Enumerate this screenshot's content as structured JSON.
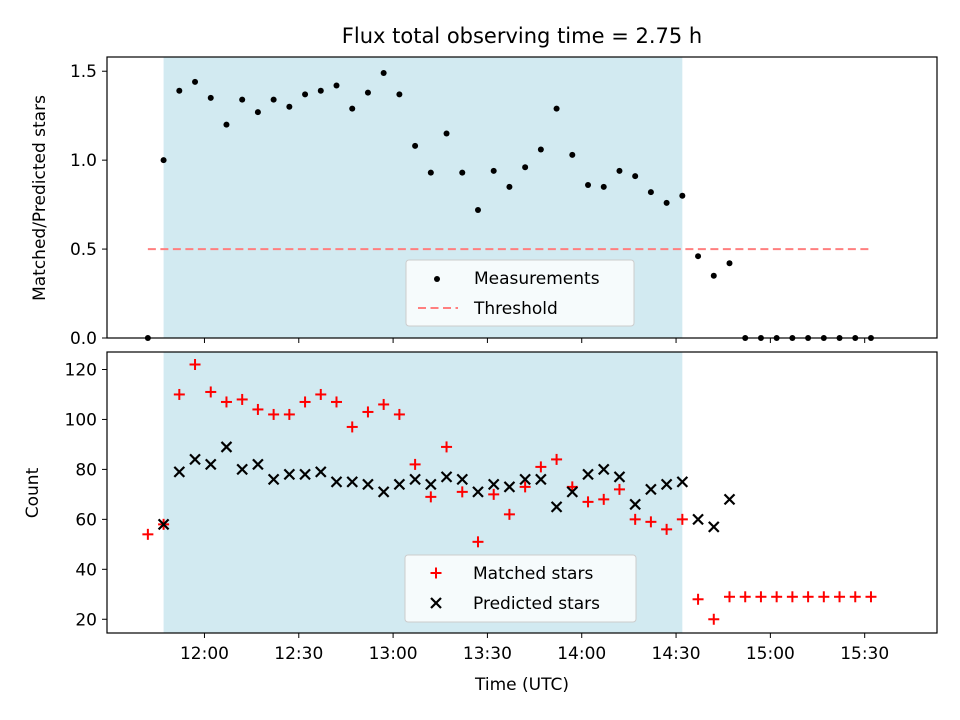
{
  "title": "Flux total observing time = 2.75 h",
  "colors": {
    "shade": "#add8e6",
    "measurement": "#000000",
    "threshold": "#ff7f7f",
    "matched": "#ff0000",
    "predicted": "#000000"
  },
  "chart_data": [
    {
      "type": "scatter",
      "ylabel": "Matched/Predicted stars",
      "xlim": [
        "11:29",
        "15:53"
      ],
      "ylim": [
        0,
        1.58
      ],
      "yticks": [
        "0.0",
        "0.5",
        "1.0",
        "1.5"
      ],
      "shaded_interval": [
        "11:47",
        "14:32"
      ],
      "threshold": {
        "name": "Threshold",
        "y": 0.5,
        "x": [
          "11:42",
          "15:32"
        ]
      },
      "legend_position": "lower center",
      "series": [
        {
          "name": "Measurements",
          "marker": "dot",
          "points": [
            [
              "11:42",
              0.0
            ],
            [
              "11:47",
              1.0
            ],
            [
              "11:52",
              1.39
            ],
            [
              "11:57",
              1.44
            ],
            [
              "12:02",
              1.35
            ],
            [
              "12:07",
              1.2
            ],
            [
              "12:12",
              1.34
            ],
            [
              "12:17",
              1.27
            ],
            [
              "12:22",
              1.34
            ],
            [
              "12:27",
              1.3
            ],
            [
              "12:32",
              1.37
            ],
            [
              "12:37",
              1.39
            ],
            [
              "12:42",
              1.42
            ],
            [
              "12:47",
              1.29
            ],
            [
              "12:52",
              1.38
            ],
            [
              "12:57",
              1.49
            ],
            [
              "13:02",
              1.37
            ],
            [
              "13:07",
              1.08
            ],
            [
              "13:12",
              0.93
            ],
            [
              "13:17",
              1.15
            ],
            [
              "13:22",
              0.93
            ],
            [
              "13:27",
              0.72
            ],
            [
              "13:32",
              0.94
            ],
            [
              "13:37",
              0.85
            ],
            [
              "13:42",
              0.96
            ],
            [
              "13:47",
              1.06
            ],
            [
              "13:52",
              1.29
            ],
            [
              "13:57",
              1.03
            ],
            [
              "14:02",
              0.86
            ],
            [
              "14:07",
              0.85
            ],
            [
              "14:12",
              0.94
            ],
            [
              "14:17",
              0.91
            ],
            [
              "14:22",
              0.82
            ],
            [
              "14:27",
              0.76
            ],
            [
              "14:32",
              0.8
            ],
            [
              "14:37",
              0.46
            ],
            [
              "14:42",
              0.35
            ],
            [
              "14:47",
              0.42
            ],
            [
              "14:52",
              0.0
            ],
            [
              "14:57",
              0.0
            ],
            [
              "15:02",
              0.0
            ],
            [
              "15:07",
              0.0
            ],
            [
              "15:12",
              0.0
            ],
            [
              "15:17",
              0.0
            ],
            [
              "15:22",
              0.0
            ],
            [
              "15:27",
              0.0
            ],
            [
              "15:32",
              0.0
            ]
          ]
        }
      ]
    },
    {
      "type": "scatter",
      "xlabel": "Time (UTC)",
      "ylabel": "Count",
      "xlim": [
        "11:29",
        "15:53"
      ],
      "ylim": [
        14.5,
        127
      ],
      "yticks": [
        "20",
        "40",
        "60",
        "80",
        "100",
        "120"
      ],
      "xticks": [
        "12:00",
        "12:30",
        "13:00",
        "13:30",
        "14:00",
        "14:30",
        "15:00",
        "15:30"
      ],
      "shaded_interval": [
        "11:47",
        "14:32"
      ],
      "legend_position": "lower center",
      "series": [
        {
          "name": "Matched stars",
          "marker": "plus",
          "points": [
            [
              "11:42",
              54
            ],
            [
              "11:47",
              58
            ],
            [
              "11:52",
              110
            ],
            [
              "11:57",
              122
            ],
            [
              "12:02",
              111
            ],
            [
              "12:07",
              107
            ],
            [
              "12:12",
              108
            ],
            [
              "12:17",
              104
            ],
            [
              "12:22",
              102
            ],
            [
              "12:27",
              102
            ],
            [
              "12:32",
              107
            ],
            [
              "12:37",
              110
            ],
            [
              "12:42",
              107
            ],
            [
              "12:47",
              97
            ],
            [
              "12:52",
              103
            ],
            [
              "12:57",
              106
            ],
            [
              "13:02",
              102
            ],
            [
              "13:07",
              82
            ],
            [
              "13:12",
              69
            ],
            [
              "13:17",
              89
            ],
            [
              "13:22",
              71
            ],
            [
              "13:27",
              51
            ],
            [
              "13:32",
              70
            ],
            [
              "13:37",
              62
            ],
            [
              "13:42",
              73
            ],
            [
              "13:47",
              81
            ],
            [
              "13:52",
              84
            ],
            [
              "13:57",
              73
            ],
            [
              "14:02",
              67
            ],
            [
              "14:07",
              68
            ],
            [
              "14:12",
              72
            ],
            [
              "14:17",
              60
            ],
            [
              "14:22",
              59
            ],
            [
              "14:27",
              56
            ],
            [
              "14:32",
              60
            ],
            [
              "14:37",
              28
            ],
            [
              "14:42",
              20
            ],
            [
              "14:47",
              29
            ],
            [
              "14:52",
              29
            ],
            [
              "14:57",
              29
            ],
            [
              "15:02",
              29
            ],
            [
              "15:07",
              29
            ],
            [
              "15:12",
              29
            ],
            [
              "15:17",
              29
            ],
            [
              "15:22",
              29
            ],
            [
              "15:27",
              29
            ],
            [
              "15:32",
              29
            ]
          ]
        },
        {
          "name": "Predicted stars",
          "marker": "x",
          "points": [
            [
              "11:47",
              58
            ],
            [
              "11:52",
              79
            ],
            [
              "11:57",
              84
            ],
            [
              "12:02",
              82
            ],
            [
              "12:07",
              89
            ],
            [
              "12:12",
              80
            ],
            [
              "12:17",
              82
            ],
            [
              "12:22",
              76
            ],
            [
              "12:27",
              78
            ],
            [
              "12:32",
              78
            ],
            [
              "12:37",
              79
            ],
            [
              "12:42",
              75
            ],
            [
              "12:47",
              75
            ],
            [
              "12:52",
              74
            ],
            [
              "12:57",
              71
            ],
            [
              "13:02",
              74
            ],
            [
              "13:07",
              76
            ],
            [
              "13:12",
              74
            ],
            [
              "13:17",
              77
            ],
            [
              "13:22",
              76
            ],
            [
              "13:27",
              71
            ],
            [
              "13:32",
              74
            ],
            [
              "13:37",
              73
            ],
            [
              "13:42",
              76
            ],
            [
              "13:47",
              76
            ],
            [
              "13:52",
              65
            ],
            [
              "13:57",
              71
            ],
            [
              "14:02",
              78
            ],
            [
              "14:07",
              80
            ],
            [
              "14:12",
              77
            ],
            [
              "14:17",
              66
            ],
            [
              "14:22",
              72
            ],
            [
              "14:27",
              74
            ],
            [
              "14:32",
              75
            ],
            [
              "14:37",
              60
            ],
            [
              "14:42",
              57
            ],
            [
              "14:47",
              68
            ]
          ]
        }
      ]
    }
  ]
}
